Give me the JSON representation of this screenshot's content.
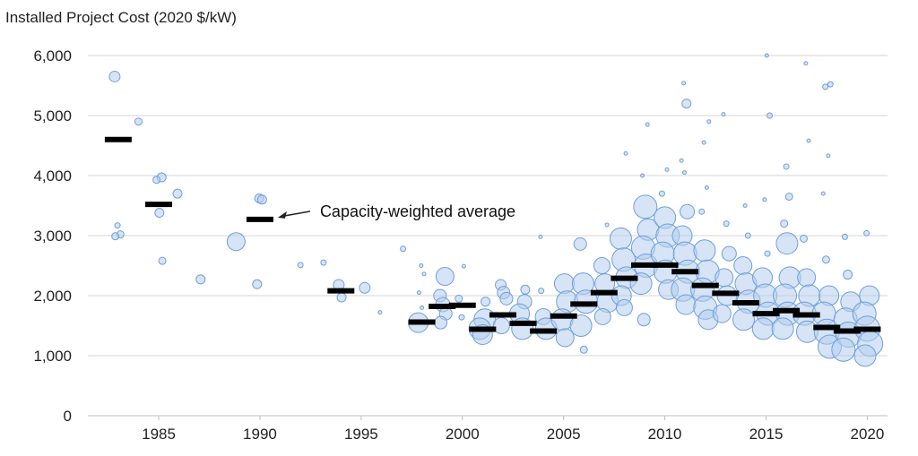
{
  "chart_data": {
    "type": "scatter",
    "title": "",
    "ylabel": "Installed Project Cost (2020 $/kW)",
    "xlabel": "",
    "ylim": [
      0,
      6000
    ],
    "xlim": [
      1981.5,
      2021
    ],
    "yticks": [
      0,
      1000,
      2000,
      3000,
      4000,
      5000,
      6000
    ],
    "ytick_labels": [
      "0",
      "1,000",
      "2,000",
      "3,000",
      "4,000",
      "5,000",
      "6,000"
    ],
    "xticks": [
      1985,
      1990,
      1995,
      2000,
      2005,
      2010,
      2015,
      2020
    ],
    "xtick_labels": [
      "1985",
      "1990",
      "1995",
      "2000",
      "2005",
      "2010",
      "2015",
      "2020"
    ],
    "grid": true,
    "annotation": {
      "text": "Capacity-weighted average",
      "points_to": [
        1990,
        3270
      ]
    },
    "capacity_weighted_average": [
      {
        "year": 1983,
        "value": 4600
      },
      {
        "year": 1985,
        "value": 3520
      },
      {
        "year": 1990,
        "value": 3270
      },
      {
        "year": 1994,
        "value": 2080
      },
      {
        "year": 1998,
        "value": 1560
      },
      {
        "year": 1999,
        "value": 1820
      },
      {
        "year": 2000,
        "value": 1840
      },
      {
        "year": 2001,
        "value": 1440
      },
      {
        "year": 2002,
        "value": 1680
      },
      {
        "year": 2003,
        "value": 1540
      },
      {
        "year": 2004,
        "value": 1410
      },
      {
        "year": 2005,
        "value": 1660
      },
      {
        "year": 2006,
        "value": 1860
      },
      {
        "year": 2007,
        "value": 2050
      },
      {
        "year": 2008,
        "value": 2290
      },
      {
        "year": 2009,
        "value": 2510
      },
      {
        "year": 2010,
        "value": 2510
      },
      {
        "year": 2011,
        "value": 2400
      },
      {
        "year": 2012,
        "value": 2170
      },
      {
        "year": 2013,
        "value": 2040
      },
      {
        "year": 2014,
        "value": 1880
      },
      {
        "year": 2015,
        "value": 1700
      },
      {
        "year": 2016,
        "value": 1750
      },
      {
        "year": 2017,
        "value": 1680
      },
      {
        "year": 2018,
        "value": 1470
      },
      {
        "year": 2019,
        "value": 1410
      },
      {
        "year": 2020,
        "value": 1440
      }
    ],
    "projects": [
      {
        "year": 1983,
        "cost": 5650,
        "size": 6
      },
      {
        "year": 1983,
        "cost": 3170,
        "size": 3
      },
      {
        "year": 1983,
        "cost": 3020,
        "size": 4
      },
      {
        "year": 1983,
        "cost": 2990,
        "size": 4
      },
      {
        "year": 1984,
        "cost": 4900,
        "size": 4
      },
      {
        "year": 1985,
        "cost": 3970,
        "size": 5
      },
      {
        "year": 1985,
        "cost": 3930,
        "size": 4
      },
      {
        "year": 1985,
        "cost": 3380,
        "size": 5
      },
      {
        "year": 1985,
        "cost": 2580,
        "size": 4
      },
      {
        "year": 1986,
        "cost": 3700,
        "size": 5
      },
      {
        "year": 1987,
        "cost": 2270,
        "size": 5
      },
      {
        "year": 1989,
        "cost": 2900,
        "size": 10
      },
      {
        "year": 1990,
        "cost": 3620,
        "size": 5
      },
      {
        "year": 1990,
        "cost": 3600,
        "size": 5
      },
      {
        "year": 1990,
        "cost": 2190,
        "size": 5
      },
      {
        "year": 1992,
        "cost": 2510,
        "size": 3
      },
      {
        "year": 1993,
        "cost": 2550,
        "size": 3
      },
      {
        "year": 1994,
        "cost": 2180,
        "size": 6
      },
      {
        "year": 1994,
        "cost": 1970,
        "size": 5
      },
      {
        "year": 1995,
        "cost": 2130,
        "size": 6
      },
      {
        "year": 1996,
        "cost": 1720,
        "size": 2
      },
      {
        "year": 1997,
        "cost": 2780,
        "size": 3
      },
      {
        "year": 1998,
        "cost": 1550,
        "size": 11
      },
      {
        "year": 1998,
        "cost": 2500,
        "size": 2
      },
      {
        "year": 1998,
        "cost": 2360,
        "size": 2
      },
      {
        "year": 1998,
        "cost": 2050,
        "size": 2
      },
      {
        "year": 1998,
        "cost": 1800,
        "size": 2
      },
      {
        "year": 1999,
        "cost": 2320,
        "size": 10
      },
      {
        "year": 1999,
        "cost": 2000,
        "size": 7
      },
      {
        "year": 1999,
        "cost": 1850,
        "size": 8
      },
      {
        "year": 1999,
        "cost": 1700,
        "size": 7
      },
      {
        "year": 1999,
        "cost": 1550,
        "size": 7
      },
      {
        "year": 2000,
        "cost": 2490,
        "size": 2
      },
      {
        "year": 2000,
        "cost": 1950,
        "size": 4
      },
      {
        "year": 2000,
        "cost": 1640,
        "size": 3
      },
      {
        "year": 2001,
        "cost": 1600,
        "size": 12
      },
      {
        "year": 2001,
        "cost": 1450,
        "size": 12
      },
      {
        "year": 2001,
        "cost": 1350,
        "size": 11
      },
      {
        "year": 2001,
        "cost": 1900,
        "size": 5
      },
      {
        "year": 2002,
        "cost": 2180,
        "size": 6
      },
      {
        "year": 2002,
        "cost": 2050,
        "size": 7
      },
      {
        "year": 2002,
        "cost": 1950,
        "size": 7
      },
      {
        "year": 2002,
        "cost": 1500,
        "size": 9
      },
      {
        "year": 2003,
        "cost": 1900,
        "size": 8
      },
      {
        "year": 2003,
        "cost": 1700,
        "size": 11
      },
      {
        "year": 2003,
        "cost": 1450,
        "size": 12
      },
      {
        "year": 2003,
        "cost": 2100,
        "size": 5
      },
      {
        "year": 2004,
        "cost": 2980,
        "size": 2
      },
      {
        "year": 2004,
        "cost": 1650,
        "size": 9
      },
      {
        "year": 2004,
        "cost": 1450,
        "size": 12
      },
      {
        "year": 2004,
        "cost": 2080,
        "size": 3
      },
      {
        "year": 2005,
        "cost": 2200,
        "size": 11
      },
      {
        "year": 2005,
        "cost": 1900,
        "size": 12
      },
      {
        "year": 2005,
        "cost": 1600,
        "size": 12
      },
      {
        "year": 2005,
        "cost": 1300,
        "size": 10
      },
      {
        "year": 2006,
        "cost": 2860,
        "size": 7
      },
      {
        "year": 2006,
        "cost": 2200,
        "size": 12
      },
      {
        "year": 2006,
        "cost": 1900,
        "size": 13
      },
      {
        "year": 2006,
        "cost": 1500,
        "size": 12
      },
      {
        "year": 2006,
        "cost": 1100,
        "size": 4
      },
      {
        "year": 2007,
        "cost": 3180,
        "size": 2
      },
      {
        "year": 2007,
        "cost": 2500,
        "size": 9
      },
      {
        "year": 2007,
        "cost": 2200,
        "size": 11
      },
      {
        "year": 2007,
        "cost": 1900,
        "size": 12
      },
      {
        "year": 2007,
        "cost": 1650,
        "size": 9
      },
      {
        "year": 2008,
        "cost": 4370,
        "size": 2
      },
      {
        "year": 2008,
        "cost": 2950,
        "size": 12
      },
      {
        "year": 2008,
        "cost": 2600,
        "size": 13
      },
      {
        "year": 2008,
        "cost": 2300,
        "size": 12
      },
      {
        "year": 2008,
        "cost": 2000,
        "size": 11
      },
      {
        "year": 2008,
        "cost": 1800,
        "size": 9
      },
      {
        "year": 2009,
        "cost": 4850,
        "size": 2
      },
      {
        "year": 2009,
        "cost": 4000,
        "size": 2
      },
      {
        "year": 2009,
        "cost": 3480,
        "size": 13
      },
      {
        "year": 2009,
        "cost": 3100,
        "size": 12
      },
      {
        "year": 2009,
        "cost": 2800,
        "size": 13
      },
      {
        "year": 2009,
        "cost": 2500,
        "size": 13
      },
      {
        "year": 2009,
        "cost": 2200,
        "size": 12
      },
      {
        "year": 2009,
        "cost": 1600,
        "size": 7
      },
      {
        "year": 2010,
        "cost": 4100,
        "size": 2
      },
      {
        "year": 2010,
        "cost": 3700,
        "size": 3
      },
      {
        "year": 2010,
        "cost": 3300,
        "size": 12
      },
      {
        "year": 2010,
        "cost": 3000,
        "size": 13
      },
      {
        "year": 2010,
        "cost": 2700,
        "size": 13
      },
      {
        "year": 2010,
        "cost": 2400,
        "size": 13
      },
      {
        "year": 2010,
        "cost": 2100,
        "size": 11
      },
      {
        "year": 2011,
        "cost": 5540,
        "size": 2
      },
      {
        "year": 2011,
        "cost": 5200,
        "size": 5
      },
      {
        "year": 2011,
        "cost": 4250,
        "size": 2
      },
      {
        "year": 2011,
        "cost": 4050,
        "size": 2
      },
      {
        "year": 2011,
        "cost": 3400,
        "size": 8
      },
      {
        "year": 2011,
        "cost": 3000,
        "size": 11
      },
      {
        "year": 2011,
        "cost": 2700,
        "size": 13
      },
      {
        "year": 2011,
        "cost": 2400,
        "size": 13
      },
      {
        "year": 2011,
        "cost": 2100,
        "size": 13
      },
      {
        "year": 2011,
        "cost": 1850,
        "size": 11
      },
      {
        "year": 2012,
        "cost": 4900,
        "size": 2
      },
      {
        "year": 2012,
        "cost": 4550,
        "size": 2
      },
      {
        "year": 2012,
        "cost": 3800,
        "size": 2
      },
      {
        "year": 2012,
        "cost": 3400,
        "size": 3
      },
      {
        "year": 2012,
        "cost": 2750,
        "size": 12
      },
      {
        "year": 2012,
        "cost": 2400,
        "size": 13
      },
      {
        "year": 2012,
        "cost": 2100,
        "size": 13
      },
      {
        "year": 2012,
        "cost": 1800,
        "size": 13
      },
      {
        "year": 2012,
        "cost": 1600,
        "size": 11
      },
      {
        "year": 2013,
        "cost": 5020,
        "size": 2
      },
      {
        "year": 2013,
        "cost": 3200,
        "size": 3
      },
      {
        "year": 2013,
        "cost": 2700,
        "size": 8
      },
      {
        "year": 2013,
        "cost": 2300,
        "size": 10
      },
      {
        "year": 2013,
        "cost": 2000,
        "size": 11
      },
      {
        "year": 2013,
        "cost": 1700,
        "size": 10
      },
      {
        "year": 2014,
        "cost": 3500,
        "size": 2
      },
      {
        "year": 2014,
        "cost": 3000,
        "size": 3
      },
      {
        "year": 2014,
        "cost": 2500,
        "size": 10
      },
      {
        "year": 2014,
        "cost": 2200,
        "size": 12
      },
      {
        "year": 2014,
        "cost": 1900,
        "size": 13
      },
      {
        "year": 2014,
        "cost": 1600,
        "size": 12
      },
      {
        "year": 2015,
        "cost": 6000,
        "size": 2
      },
      {
        "year": 2015,
        "cost": 5000,
        "size": 3
      },
      {
        "year": 2015,
        "cost": 3600,
        "size": 2
      },
      {
        "year": 2015,
        "cost": 2700,
        "size": 3
      },
      {
        "year": 2015,
        "cost": 2300,
        "size": 11
      },
      {
        "year": 2015,
        "cost": 2000,
        "size": 13
      },
      {
        "year": 2015,
        "cost": 1700,
        "size": 13
      },
      {
        "year": 2015,
        "cost": 1450,
        "size": 12
      },
      {
        "year": 2016,
        "cost": 4150,
        "size": 3
      },
      {
        "year": 2016,
        "cost": 3650,
        "size": 4
      },
      {
        "year": 2016,
        "cost": 3200,
        "size": 4
      },
      {
        "year": 2016,
        "cost": 2870,
        "size": 12
      },
      {
        "year": 2016,
        "cost": 2300,
        "size": 12
      },
      {
        "year": 2016,
        "cost": 2000,
        "size": 13
      },
      {
        "year": 2016,
        "cost": 1700,
        "size": 13
      },
      {
        "year": 2016,
        "cost": 1450,
        "size": 12
      },
      {
        "year": 2017,
        "cost": 5870,
        "size": 2
      },
      {
        "year": 2017,
        "cost": 4580,
        "size": 2
      },
      {
        "year": 2017,
        "cost": 2950,
        "size": 4
      },
      {
        "year": 2017,
        "cost": 2300,
        "size": 10
      },
      {
        "year": 2017,
        "cost": 2000,
        "size": 12
      },
      {
        "year": 2017,
        "cost": 1700,
        "size": 13
      },
      {
        "year": 2017,
        "cost": 1400,
        "size": 12
      },
      {
        "year": 2018,
        "cost": 5520,
        "size": 3
      },
      {
        "year": 2018,
        "cost": 5480,
        "size": 3
      },
      {
        "year": 2018,
        "cost": 4330,
        "size": 2
      },
      {
        "year": 2018,
        "cost": 3700,
        "size": 2
      },
      {
        "year": 2018,
        "cost": 2600,
        "size": 4
      },
      {
        "year": 2018,
        "cost": 2000,
        "size": 11
      },
      {
        "year": 2018,
        "cost": 1700,
        "size": 13
      },
      {
        "year": 2018,
        "cost": 1400,
        "size": 14
      },
      {
        "year": 2018,
        "cost": 1150,
        "size": 13
      },
      {
        "year": 2019,
        "cost": 2980,
        "size": 3
      },
      {
        "year": 2019,
        "cost": 2350,
        "size": 5
      },
      {
        "year": 2019,
        "cost": 1900,
        "size": 11
      },
      {
        "year": 2019,
        "cost": 1600,
        "size": 13
      },
      {
        "year": 2019,
        "cost": 1350,
        "size": 14
      },
      {
        "year": 2019,
        "cost": 1100,
        "size": 13
      },
      {
        "year": 2020,
        "cost": 3040,
        "size": 3
      },
      {
        "year": 2020,
        "cost": 2000,
        "size": 11
      },
      {
        "year": 2020,
        "cost": 1700,
        "size": 13
      },
      {
        "year": 2020,
        "cost": 1450,
        "size": 14
      },
      {
        "year": 2020,
        "cost": 1200,
        "size": 14
      },
      {
        "year": 2020,
        "cost": 1000,
        "size": 12
      }
    ]
  }
}
